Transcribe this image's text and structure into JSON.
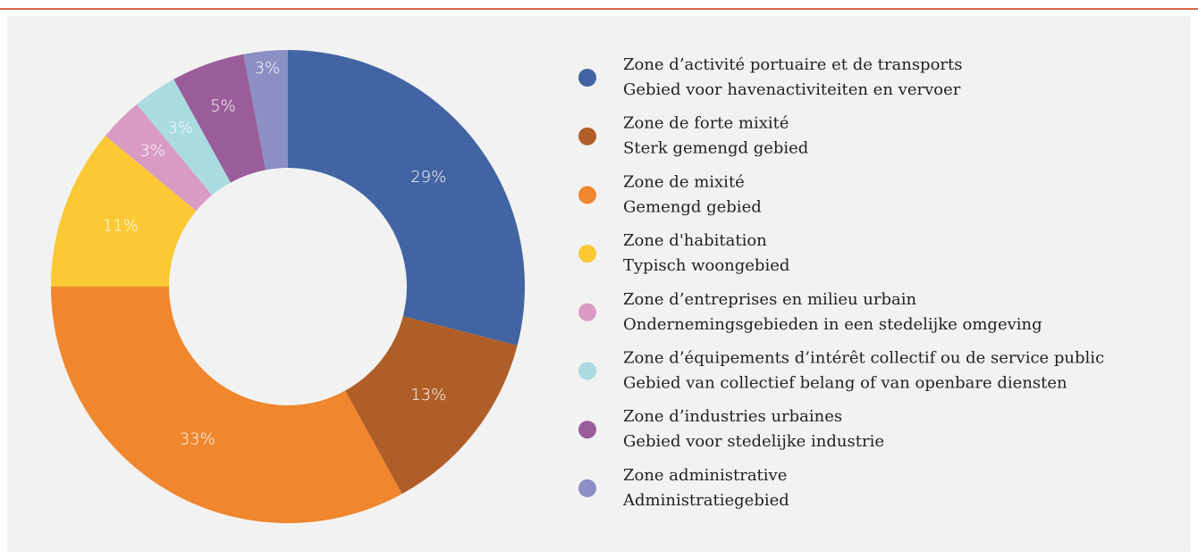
{
  "chart_data": {
    "type": "donut",
    "categories": [
      [
        "Zone d’activité portuaire et de transports",
        "Gebied voor havenactiviteiten en vervoer"
      ],
      [
        "Zone de forte mixité",
        "Sterk gemengd gebied"
      ],
      [
        "Zone de mixité",
        "Gemengd gebied"
      ],
      [
        "Zone d'habitation",
        "Typisch woongebied"
      ],
      [
        "Zone d’entreprises en milieu urbain",
        "Ondernemingsgebieden in een stedelijke omgeving"
      ],
      [
        "Zone d’équipements d’intérêt collectif ou de service public",
        "Gebied van collectief belang of van openbare diensten"
      ],
      [
        "Zone d’industries urbaines",
        "Gebied voor stedelijke industrie"
      ],
      [
        "Zone administrative",
        "Administratiegebied"
      ]
    ],
    "values": [
      29,
      13,
      33,
      11,
      3,
      3,
      5,
      3
    ],
    "value_labels": [
      "29%",
      "13%",
      "33%",
      "11%",
      "3%",
      "3%",
      "5%",
      "3%"
    ],
    "colors": [
      "#4264a3",
      "#b05e27",
      "#f0862d",
      "#fbc934",
      "#d99bc3",
      "#a9dbe0",
      "#9b5d9a",
      "#8b8fc4"
    ]
  }
}
